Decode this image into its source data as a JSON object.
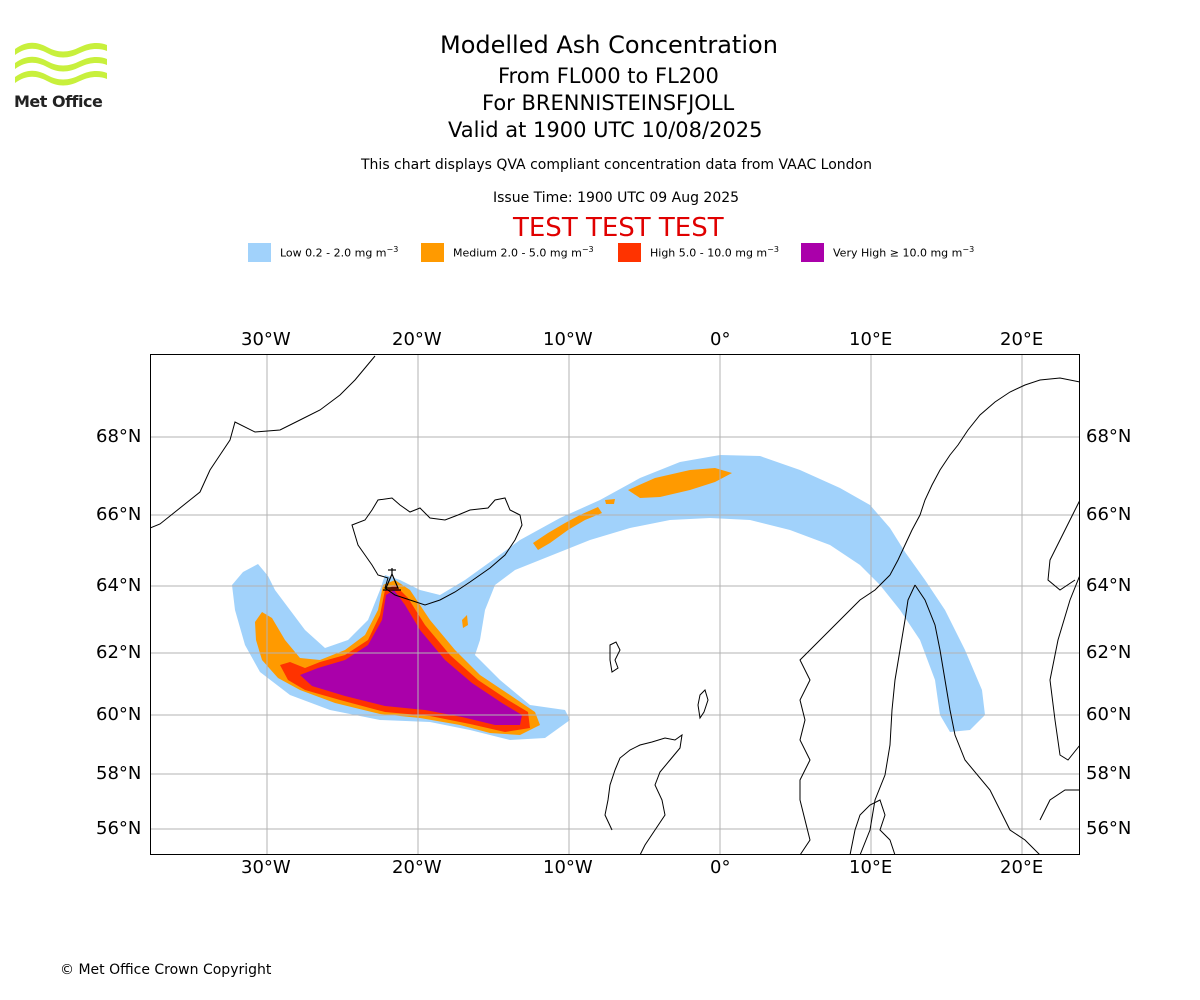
{
  "logo": {
    "text": "Met Office",
    "color": "#c8f03c"
  },
  "titles": {
    "line1": "Modelled Ash Concentration",
    "line2": "From FL000 to FL200",
    "line3": "For BRENNISTEINSFJOLL",
    "line4": "Valid at 1900 UTC 10/08/2025"
  },
  "subtitle": "This chart displays QVA compliant concentration data from VAAC London",
  "issue_time": "Issue Time: 1900 UTC 09 Aug 2025",
  "test_banner": "TEST TEST TEST",
  "legend": [
    {
      "label": "Low 0.2 - 2.0 mg m",
      "unit_sup": "−3",
      "color": "#a1d2fb"
    },
    {
      "label": "Medium 2.0 - 5.0 mg m",
      "unit_sup": "−3",
      "color": "#ff9a00"
    },
    {
      "label": "High 5.0 - 10.0 mg m",
      "unit_sup": "−3",
      "color": "#ff3300"
    },
    {
      "label": "Very High  ≥  10.0 mg m",
      "unit_sup": "−3",
      "color": "#aa00aa"
    }
  ],
  "axes": {
    "lon_labels": [
      "30°W",
      "20°W",
      "10°W",
      "0°",
      "10°E",
      "20°E"
    ],
    "lat_labels": [
      "68°N",
      "66°N",
      "64°N",
      "62°N",
      "60°N",
      "58°N",
      "56°N"
    ]
  },
  "copyright": "© Met Office Crown Copyright"
}
